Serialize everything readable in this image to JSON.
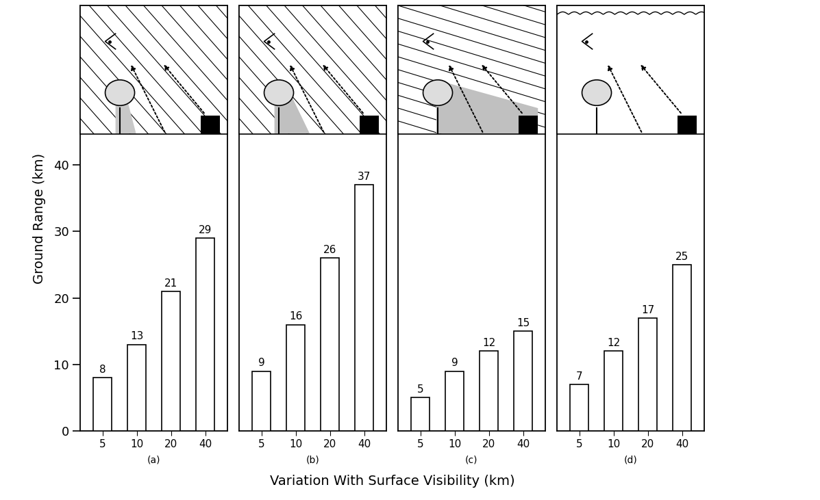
{
  "x_label": "Variation With Surface Visibility (km)",
  "y_label": "Ground Range (km)",
  "chart_data": [
    {
      "type": "bar",
      "subtitle": "(a)",
      "categories": [
        "5",
        "10",
        "20",
        "40"
      ],
      "values": [
        8,
        13,
        21,
        29
      ],
      "color": "#ffffff",
      "ylim": [
        0,
        64
      ],
      "yticks": [
        0,
        10,
        20,
        30,
        40
      ],
      "data_labels": true
    },
    {
      "type": "bar",
      "subtitle": "(b)",
      "categories": [
        "5",
        "10",
        "20",
        "40"
      ],
      "values": [
        9,
        16,
        26,
        37
      ],
      "color": "#ffffff",
      "ylim": [
        0,
        64
      ],
      "data_labels": true,
      "tick_labels": "x"
    },
    {
      "type": "bar",
      "subtitle": "(c)",
      "categories": [
        "5",
        "10",
        "20",
        "40"
      ],
      "values": [
        5,
        9,
        12,
        15
      ],
      "color": "#ffffff",
      "ylim": [
        0,
        64
      ],
      "data_labels": true,
      "tick_labels": "x"
    },
    {
      "type": "bar",
      "subtitle": "(d)",
      "categories": [
        "5",
        "10",
        "20",
        "40"
      ],
      "values": [
        7,
        12,
        17,
        25
      ],
      "color": "#ffffff",
      "ylim": [
        0,
        64
      ],
      "data_labels": true,
      "tick_labels": "x"
    }
  ]
}
